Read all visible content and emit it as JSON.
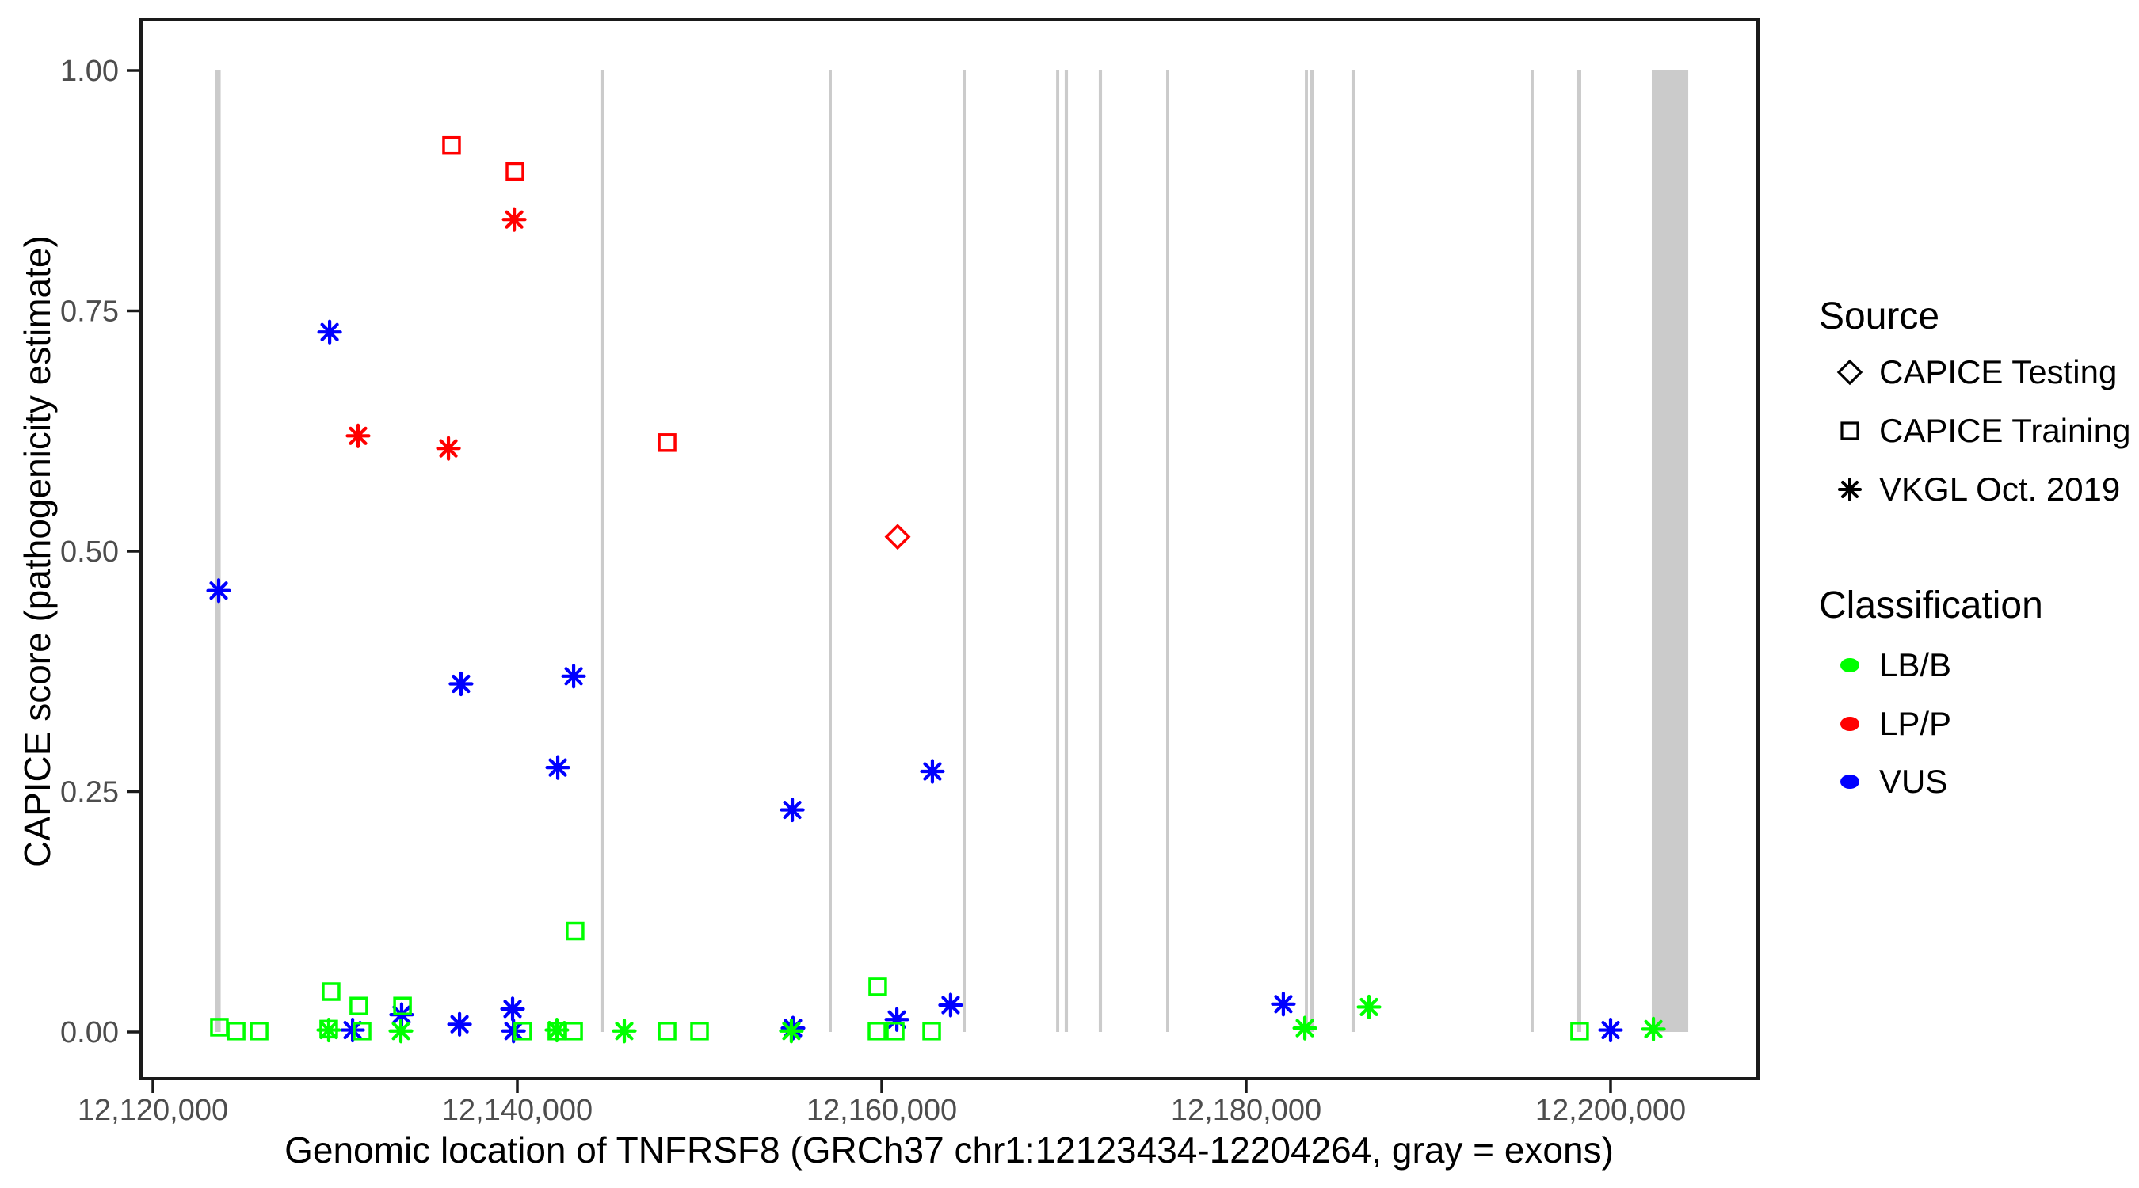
{
  "figure": {
    "background": "#FFFFFF",
    "panel_border_color": "#1A1A1A",
    "exon_color": "#CBCBCB",
    "tick_label_color": "#4D4D4D",
    "axis_title_color": "#000000",
    "x_axis": {
      "title": "Genomic location of TNFRSF8 (GRCh37 chr1:12123434-12204264, gray = exons)",
      "ticks": [
        {
          "value": 12120000,
          "label": "12,120,000"
        },
        {
          "value": 12140000,
          "label": "12,140,000"
        },
        {
          "value": 12160000,
          "label": "12,160,000"
        },
        {
          "value": 12180000,
          "label": "12,180,000"
        },
        {
          "value": 12200000,
          "label": "12,200,000"
        }
      ]
    },
    "y_axis": {
      "title": "CAPICE score (pathogenicity estimate)",
      "ticks": [
        {
          "value": 0.0,
          "label": "0.00"
        },
        {
          "value": 0.25,
          "label": "0.25"
        },
        {
          "value": 0.5,
          "label": "0.50"
        },
        {
          "value": 0.75,
          "label": "0.75"
        },
        {
          "value": 1.0,
          "label": "1.00"
        }
      ]
    },
    "legend": {
      "source": {
        "title": "Source",
        "items": [
          {
            "shape": "diamond",
            "label": "CAPICE Testing"
          },
          {
            "shape": "square",
            "label": "CAPICE Training"
          },
          {
            "shape": "asterisk",
            "label": "VKGL Oct. 2019"
          }
        ]
      },
      "classification": {
        "title": "Classification",
        "items": [
          {
            "color": "#00FF00",
            "label": "LB/B"
          },
          {
            "color": "#FF0000",
            "label": "LP/P"
          },
          {
            "color": "#0000FF",
            "label": "VUS"
          }
        ]
      }
    }
  },
  "chart_data": {
    "type": "scatter",
    "title": "",
    "xlabel": "Genomic location of TNFRSF8 (GRCh37 chr1:12123434-12204264, gray = exons)",
    "ylabel": "CAPICE score (pathogenicity estimate)",
    "x_range": [
      12119350,
      12208090
    ],
    "y_range": [
      -0.049,
      1.053
    ],
    "x_ticks": [
      12120000,
      12140000,
      12160000,
      12180000,
      12200000
    ],
    "y_ticks": [
      0.0,
      0.25,
      0.5,
      0.75,
      1.0
    ],
    "grid": false,
    "legend_position": "right",
    "classification_colors": {
      "LB/B": "#00FF00",
      "LP/P": "#FF0000",
      "VUS": "#0000FF"
    },
    "source_shapes": {
      "CAPICE Testing": "diamond",
      "CAPICE Training": "square",
      "VKGL Oct. 2019": "asterisk"
    },
    "exon_span_y": [
      0.0,
      1.0
    ],
    "exons": [
      {
        "start": 12123434,
        "end": 12123720
      },
      {
        "start": 12144560,
        "end": 12144740
      },
      {
        "start": 12157090,
        "end": 12157260
      },
      {
        "start": 12164440,
        "end": 12164610
      },
      {
        "start": 12169570,
        "end": 12169740
      },
      {
        "start": 12170040,
        "end": 12170220
      },
      {
        "start": 12171910,
        "end": 12172090
      },
      {
        "start": 12175610,
        "end": 12175780
      },
      {
        "start": 12183220,
        "end": 12183390
      },
      {
        "start": 12183520,
        "end": 12183700
      },
      {
        "start": 12185780,
        "end": 12186000
      },
      {
        "start": 12195610,
        "end": 12195780
      },
      {
        "start": 12198130,
        "end": 12198390
      },
      {
        "start": 12202260,
        "end": 12204264
      }
    ],
    "points": [
      {
        "x": 12136390,
        "y": 0.922,
        "classification": "LP/P",
        "source": "CAPICE Training"
      },
      {
        "x": 12139870,
        "y": 0.895,
        "classification": "LP/P",
        "source": "CAPICE Training"
      },
      {
        "x": 12148220,
        "y": 0.613,
        "classification": "LP/P",
        "source": "CAPICE Training"
      },
      {
        "x": 12160870,
        "y": 0.515,
        "classification": "LP/P",
        "source": "CAPICE Testing"
      },
      {
        "x": 12139830,
        "y": 0.845,
        "classification": "LP/P",
        "source": "VKGL Oct. 2019"
      },
      {
        "x": 12131260,
        "y": 0.62,
        "classification": "LP/P",
        "source": "VKGL Oct. 2019"
      },
      {
        "x": 12136220,
        "y": 0.607,
        "classification": "LP/P",
        "source": "VKGL Oct. 2019"
      },
      {
        "x": 12123610,
        "y": 0.459,
        "classification": "VUS",
        "source": "VKGL Oct. 2019"
      },
      {
        "x": 12129700,
        "y": 0.728,
        "classification": "VUS",
        "source": "VKGL Oct. 2019"
      },
      {
        "x": 12136910,
        "y": 0.362,
        "classification": "VUS",
        "source": "VKGL Oct. 2019"
      },
      {
        "x": 12143090,
        "y": 0.37,
        "classification": "VUS",
        "source": "VKGL Oct. 2019"
      },
      {
        "x": 12142220,
        "y": 0.275,
        "classification": "VUS",
        "source": "VKGL Oct. 2019"
      },
      {
        "x": 12155090,
        "y": 0.231,
        "classification": "VUS",
        "source": "VKGL Oct. 2019"
      },
      {
        "x": 12162780,
        "y": 0.271,
        "classification": "VUS",
        "source": "VKGL Oct. 2019"
      },
      {
        "x": 12130960,
        "y": 0.002,
        "classification": "VUS",
        "source": "VKGL Oct. 2019"
      },
      {
        "x": 12133650,
        "y": 0.018,
        "classification": "VUS",
        "source": "VKGL Oct. 2019"
      },
      {
        "x": 12136830,
        "y": 0.008,
        "classification": "VUS",
        "source": "VKGL Oct. 2019"
      },
      {
        "x": 12139740,
        "y": 0.024,
        "classification": "VUS",
        "source": "VKGL Oct. 2019"
      },
      {
        "x": 12139790,
        "y": 0.001,
        "classification": "VUS",
        "source": "VKGL Oct. 2019"
      },
      {
        "x": 12155130,
        "y": 0.004,
        "classification": "VUS",
        "source": "VKGL Oct. 2019"
      },
      {
        "x": 12160830,
        "y": 0.013,
        "classification": "VUS",
        "source": "VKGL Oct. 2019"
      },
      {
        "x": 12163780,
        "y": 0.028,
        "classification": "VUS",
        "source": "VKGL Oct. 2019"
      },
      {
        "x": 12182040,
        "y": 0.029,
        "classification": "VUS",
        "source": "VKGL Oct. 2019"
      },
      {
        "x": 12200000,
        "y": 0.002,
        "classification": "VUS",
        "source": "VKGL Oct. 2019"
      },
      {
        "x": 12123650,
        "y": 0.005,
        "classification": "LB/B",
        "source": "CAPICE Training"
      },
      {
        "x": 12124570,
        "y": 0.001,
        "classification": "LB/B",
        "source": "CAPICE Training"
      },
      {
        "x": 12125830,
        "y": 0.001,
        "classification": "LB/B",
        "source": "CAPICE Training"
      },
      {
        "x": 12129650,
        "y": 0.003,
        "classification": "LB/B",
        "source": "CAPICE Training"
      },
      {
        "x": 12129780,
        "y": 0.042,
        "classification": "LB/B",
        "source": "CAPICE Training"
      },
      {
        "x": 12131300,
        "y": 0.027,
        "classification": "LB/B",
        "source": "CAPICE Training"
      },
      {
        "x": 12131480,
        "y": 0.001,
        "classification": "LB/B",
        "source": "CAPICE Training"
      },
      {
        "x": 12133700,
        "y": 0.027,
        "classification": "LB/B",
        "source": "CAPICE Training"
      },
      {
        "x": 12140300,
        "y": 0.001,
        "classification": "LB/B",
        "source": "CAPICE Training"
      },
      {
        "x": 12142170,
        "y": 0.001,
        "classification": "LB/B",
        "source": "CAPICE Training"
      },
      {
        "x": 12143090,
        "y": 0.001,
        "classification": "LB/B",
        "source": "CAPICE Training"
      },
      {
        "x": 12143170,
        "y": 0.105,
        "classification": "LB/B",
        "source": "CAPICE Training"
      },
      {
        "x": 12148220,
        "y": 0.001,
        "classification": "LB/B",
        "source": "CAPICE Training"
      },
      {
        "x": 12150000,
        "y": 0.001,
        "classification": "LB/B",
        "source": "CAPICE Training"
      },
      {
        "x": 12159740,
        "y": 0.001,
        "classification": "LB/B",
        "source": "CAPICE Training"
      },
      {
        "x": 12159780,
        "y": 0.047,
        "classification": "LB/B",
        "source": "CAPICE Training"
      },
      {
        "x": 12160740,
        "y": 0.001,
        "classification": "LB/B",
        "source": "CAPICE Training"
      },
      {
        "x": 12162740,
        "y": 0.001,
        "classification": "LB/B",
        "source": "CAPICE Training"
      },
      {
        "x": 12198300,
        "y": 0.001,
        "classification": "LB/B",
        "source": "CAPICE Training"
      },
      {
        "x": 12129650,
        "y": 0.002,
        "classification": "LB/B",
        "source": "VKGL Oct. 2019"
      },
      {
        "x": 12133610,
        "y": 0.001,
        "classification": "LB/B",
        "source": "VKGL Oct. 2019"
      },
      {
        "x": 12142170,
        "y": 0.002,
        "classification": "LB/B",
        "source": "VKGL Oct. 2019"
      },
      {
        "x": 12145870,
        "y": 0.001,
        "classification": "LB/B",
        "source": "VKGL Oct. 2019"
      },
      {
        "x": 12155040,
        "y": 0.001,
        "classification": "LB/B",
        "source": "VKGL Oct. 2019"
      },
      {
        "x": 12183220,
        "y": 0.004,
        "classification": "LB/B",
        "source": "VKGL Oct. 2019"
      },
      {
        "x": 12186740,
        "y": 0.026,
        "classification": "LB/B",
        "source": "VKGL Oct. 2019"
      },
      {
        "x": 12202350,
        "y": 0.003,
        "classification": "LB/B",
        "source": "VKGL Oct. 2019"
      }
    ]
  }
}
